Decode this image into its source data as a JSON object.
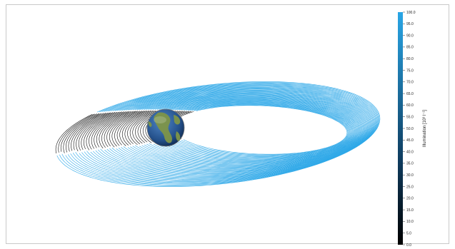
{
  "chart_data": {
    "type": "line",
    "title": "",
    "description_series": [
      {
        "name": "",
        "kind": "orbit-track",
        "color_scale": "illumination"
      }
    ],
    "colorbar": {
      "label": "Illumination [10³ l⁻¹]",
      "min": 0.0,
      "max": 100.0,
      "ticks": [
        "0.0",
        "5.0",
        "10.0",
        "15.0",
        "20.0",
        "25.0",
        "30.0",
        "35.0",
        "40.0",
        "45.0",
        "50.0",
        "55.0",
        "60.0",
        "65.0",
        "70.0",
        "75.0",
        "80.0",
        "85.0",
        "90.0",
        "95.0",
        "100.0"
      ],
      "colors": [
        "#000000",
        "#29a6e6"
      ]
    },
    "sunlit_fraction": 0.77,
    "grid": false,
    "legend": "none"
  },
  "colors": {
    "sunlit": "#2ea8e8",
    "shadow": "#111111",
    "ocean": "#2e5f9a",
    "land": "#8a9a4a"
  },
  "icons": {
    "earth": "earth-globe-icon"
  }
}
